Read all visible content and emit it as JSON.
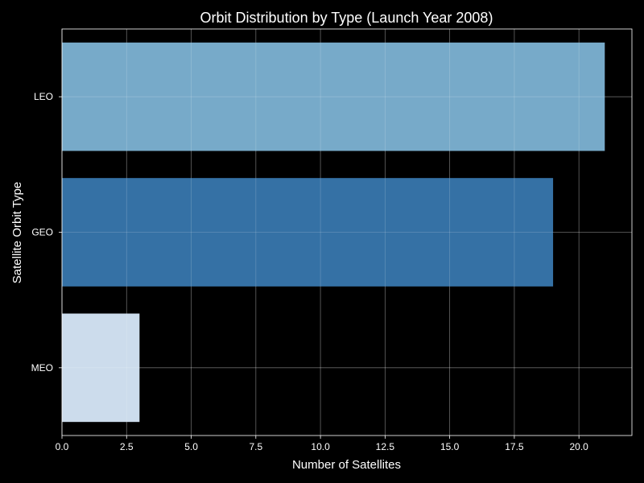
{
  "chart_data": {
    "type": "bar",
    "orientation": "horizontal",
    "title": "Orbit Distribution by Type (Launch Year 2008)",
    "xlabel": "Number of Satellites",
    "ylabel": "Satellite Orbit Type",
    "categories": [
      "LEO",
      "GEO",
      "MEO"
    ],
    "values": [
      21,
      19,
      3
    ],
    "bar_colors": [
      "#77aac9",
      "#3571a5",
      "#ccdcec"
    ],
    "xlim": [
      0,
      22.05
    ],
    "x_ticks": [
      0,
      2.5,
      5,
      7.5,
      10,
      12.5,
      15,
      17.5,
      20
    ],
    "x_tick_labels": [
      "0.0",
      "2.5",
      "5.0",
      "7.5",
      "10.0",
      "12.5",
      "15.0",
      "17.5",
      "20.0"
    ],
    "grid": true,
    "background_color": "#000000",
    "text_color": "#ffffff"
  }
}
